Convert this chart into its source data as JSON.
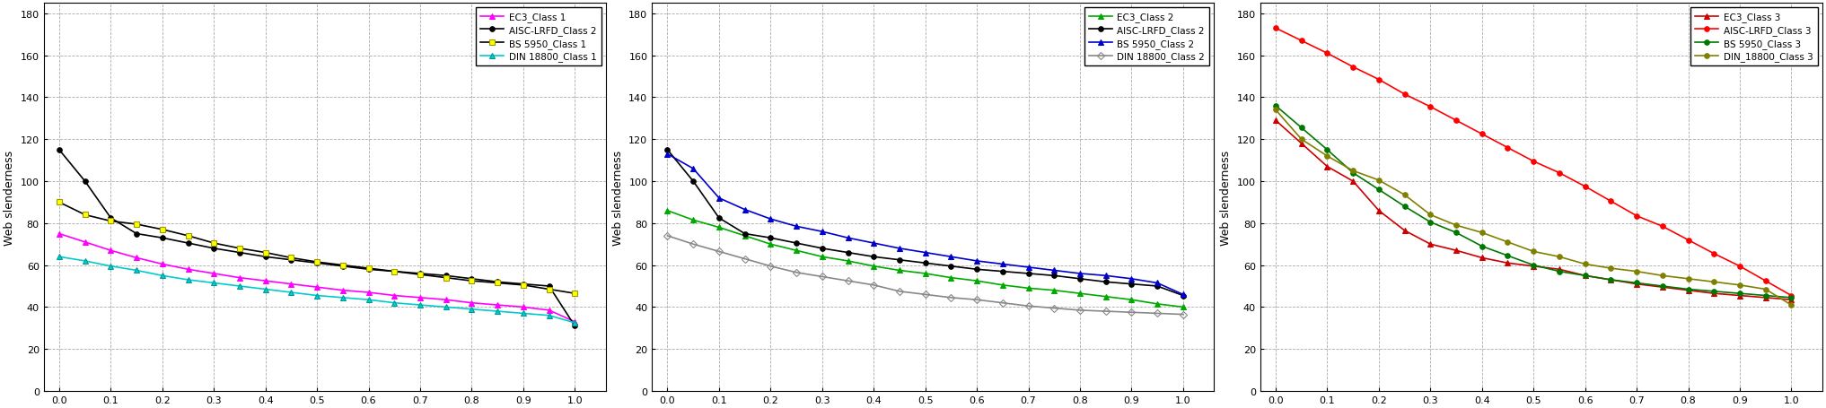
{
  "x": [
    0.0,
    0.05,
    0.1,
    0.15,
    0.2,
    0.25,
    0.3,
    0.35,
    0.4,
    0.45,
    0.5,
    0.55,
    0.6,
    0.65,
    0.7,
    0.75,
    0.8,
    0.85,
    0.9,
    0.95,
    1.0
  ],
  "panel1": {
    "legend": [
      "EC3_Class 1",
      "AISC-LRFD_Class 2",
      "BS 5950_Class 1",
      "DIN 18800_Class 1"
    ],
    "colors": [
      "#ff00ff",
      "#000000",
      "#000000",
      "#00cccc"
    ],
    "linecolors": [
      "#ff00ff",
      "#000000",
      "#000000",
      "#00cccc"
    ],
    "markers": [
      "^",
      "o",
      "s",
      "^"
    ],
    "mfc": [
      "#ff00ff",
      "#000000",
      "#ffff00",
      "#00cccc"
    ],
    "mec": [
      "#ff00ff",
      "#000000",
      "#999900",
      "#009999"
    ],
    "series": [
      [
        75.0,
        71.0,
        67.0,
        63.5,
        60.5,
        58.0,
        56.0,
        54.0,
        52.5,
        51.0,
        49.5,
        48.0,
        47.0,
        45.5,
        44.5,
        43.5,
        42.0,
        41.0,
        40.0,
        38.5,
        33.0
      ],
      [
        115.0,
        100.0,
        82.5,
        75.0,
        73.0,
        70.5,
        68.0,
        66.0,
        64.0,
        62.5,
        61.0,
        59.5,
        58.0,
        57.0,
        56.0,
        55.0,
        53.5,
        52.0,
        51.0,
        50.0,
        31.0
      ],
      [
        90.0,
        84.0,
        81.0,
        79.5,
        77.0,
        74.0,
        70.5,
        68.0,
        66.0,
        63.5,
        61.5,
        60.0,
        58.5,
        57.0,
        55.5,
        54.0,
        52.5,
        51.5,
        50.5,
        48.5,
        46.5
      ],
      [
        64.0,
        62.0,
        59.5,
        57.5,
        55.0,
        53.0,
        51.5,
        50.0,
        48.5,
        47.0,
        45.5,
        44.5,
        43.5,
        42.0,
        41.0,
        40.0,
        39.0,
        38.0,
        37.0,
        36.0,
        32.5
      ]
    ]
  },
  "panel2": {
    "legend": [
      "EC3_Class 2",
      "AISC-LRFD_Class 2",
      "BS 5950_Class 2",
      "DIN 18800_Class 2"
    ],
    "colors": [
      "#00aa00",
      "#000000",
      "#0000cc",
      "#888888"
    ],
    "linecolors": [
      "#00aa00",
      "#000000",
      "#0000cc",
      "#888888"
    ],
    "markers": [
      "^",
      "o",
      "^",
      "D"
    ],
    "mfc": [
      "#00aa00",
      "#000000",
      "#0000cc",
      "none"
    ],
    "mec": [
      "#00aa00",
      "#000000",
      "#0000cc",
      "#888888"
    ],
    "series": [
      [
        86.0,
        81.5,
        78.0,
        74.0,
        70.0,
        67.0,
        64.0,
        62.0,
        59.5,
        57.5,
        56.0,
        54.0,
        52.5,
        50.5,
        49.0,
        48.0,
        46.5,
        45.0,
        43.5,
        41.5,
        40.0
      ],
      [
        115.0,
        100.0,
        82.5,
        75.0,
        73.0,
        70.5,
        68.0,
        66.0,
        64.0,
        62.5,
        61.0,
        59.5,
        58.0,
        57.0,
        56.0,
        55.0,
        53.5,
        52.0,
        51.0,
        50.0,
        45.5
      ],
      [
        113.0,
        106.0,
        92.0,
        86.5,
        82.0,
        78.5,
        76.0,
        73.0,
        70.5,
        68.0,
        66.0,
        64.0,
        62.0,
        60.5,
        59.0,
        57.5,
        56.0,
        55.0,
        53.5,
        51.5,
        46.0
      ],
      [
        74.0,
        70.0,
        66.5,
        63.0,
        59.5,
        56.5,
        54.5,
        52.5,
        50.5,
        47.5,
        46.0,
        44.5,
        43.5,
        42.0,
        40.5,
        39.5,
        38.5,
        38.0,
        37.5,
        37.0,
        36.5
      ]
    ]
  },
  "panel3": {
    "legend": [
      "EC3_Class 3",
      "AISC-LRFD_Class 3",
      "BS 5950_Class 3",
      "DIN_18800_Class 3"
    ],
    "colors": [
      "#cc0000",
      "#ff0000",
      "#007700",
      "#808000"
    ],
    "linecolors": [
      "#cc0000",
      "#ff0000",
      "#007700",
      "#808000"
    ],
    "markers": [
      "^",
      "o",
      "o",
      "o"
    ],
    "mfc": [
      "#cc0000",
      "#ff0000",
      "#007700",
      "#808000"
    ],
    "mec": [
      "#cc0000",
      "#ff0000",
      "#007700",
      "#808000"
    ],
    "series": [
      [
        129.0,
        118.0,
        107.0,
        100.0,
        86.0,
        76.5,
        70.0,
        67.0,
        63.5,
        61.0,
        59.5,
        58.0,
        55.0,
        53.0,
        51.0,
        49.5,
        48.0,
        46.5,
        45.5,
        44.5,
        43.5
      ],
      [
        173.0,
        167.0,
        161.0,
        154.5,
        148.5,
        141.5,
        135.5,
        129.0,
        122.5,
        116.0,
        109.5,
        104.0,
        97.5,
        90.5,
        83.5,
        78.5,
        72.0,
        65.5,
        59.5,
        52.5,
        45.5
      ],
      [
        136.0,
        125.5,
        115.0,
        104.0,
        96.0,
        88.0,
        80.5,
        75.5,
        69.0,
        64.5,
        60.0,
        57.0,
        55.0,
        53.0,
        51.5,
        50.0,
        48.5,
        47.5,
        46.5,
        45.5,
        44.5
      ],
      [
        134.0,
        120.0,
        112.0,
        105.0,
        100.5,
        93.5,
        84.0,
        79.0,
        75.5,
        71.0,
        66.5,
        64.0,
        60.5,
        58.5,
        57.0,
        55.0,
        53.5,
        52.0,
        50.5,
        48.5,
        41.0
      ]
    ]
  },
  "ylabel": "Web slenderness",
  "ylim": [
    0,
    185
  ],
  "yticks": [
    0,
    20,
    40,
    60,
    80,
    100,
    120,
    140,
    160,
    180
  ],
  "xticks": [
    0.0,
    0.1,
    0.2,
    0.3,
    0.4,
    0.5,
    0.6,
    0.7,
    0.8,
    0.9,
    1.0
  ],
  "xlim": [
    -0.03,
    1.06
  ],
  "grid_color": "#aaaaaa",
  "grid_linestyle": "--",
  "background_color": "#ffffff",
  "markersize": 4,
  "linewidth": 1.2
}
